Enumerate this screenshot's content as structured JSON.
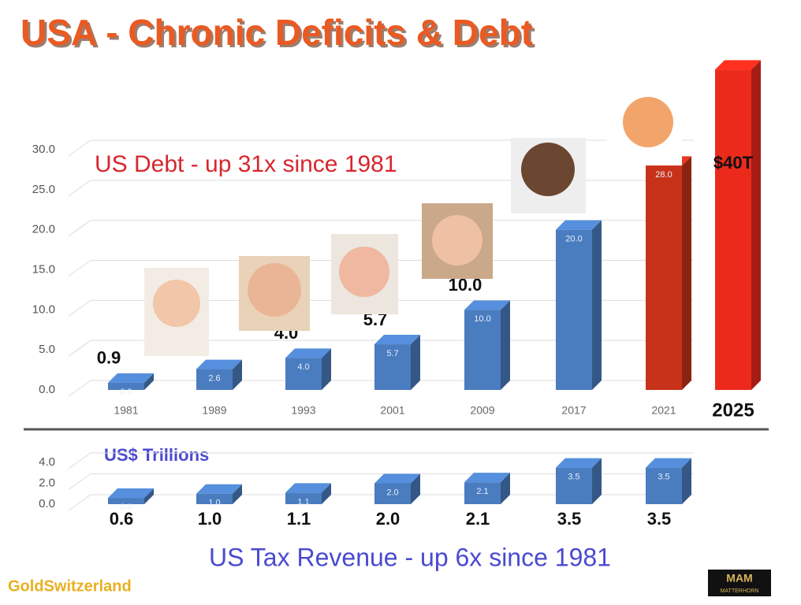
{
  "title": "USA - Chronic Deficits & Debt",
  "chart_data": [
    {
      "type": "bar3d",
      "annotation": "US Debt  -  up 31x since 1981",
      "categories": [
        "1981",
        "1989",
        "1993",
        "2001",
        "2009",
        "2017",
        "2021",
        "2025"
      ],
      "values": [
        0.9,
        2.6,
        4.0,
        5.7,
        10.0,
        20.0,
        28.0,
        40
      ],
      "value_labels": [
        "0.9",
        "2.6",
        "4.0",
        "5.7",
        "10.0",
        "20.0",
        "28.0?",
        "$40T"
      ],
      "bar_labels": [
        "0.9",
        "2.6",
        "4.0",
        "5.7",
        "10.0",
        "20.0",
        "28.0",
        null
      ],
      "colors": [
        "#4a7cc0",
        "#4a7cc0",
        "#4a7cc0",
        "#4a7cc0",
        "#4a7cc0",
        "#4a7cc0",
        "#c8321a",
        "#ec2a1c"
      ],
      "ylim": [
        0,
        30
      ],
      "yticks": [
        {
          "value": 0,
          "label": "0.0"
        },
        {
          "value": 5,
          "label": "5.0"
        },
        {
          "value": 10,
          "label": "10.0"
        },
        {
          "value": 15,
          "label": "15.0"
        },
        {
          "value": 20,
          "label": "20.0"
        },
        {
          "value": 25,
          "label": "25.0"
        },
        {
          "value": 30,
          "label": "30.0"
        }
      ],
      "grid": true
    },
    {
      "type": "bar3d",
      "subtitle": "US$ Trillions",
      "annotation": "US Tax Revenue  - up 6x since 1981",
      "categories": [
        null,
        null,
        null,
        null,
        null,
        null,
        null
      ],
      "values": [
        0.6,
        1.0,
        1.1,
        2.0,
        2.1,
        3.5,
        3.5
      ],
      "value_labels": [
        "0.6",
        "1.0",
        "1.1",
        "2.0",
        "2.1",
        "3.5",
        "3.5"
      ],
      "bar_labels": [
        "0.6",
        "1.0",
        "1.1",
        "2.0",
        "2.1",
        "3.5",
        "3.5"
      ],
      "colors": [
        "#4a7cc0",
        "#4a7cc0",
        "#4a7cc0",
        "#4a7cc0",
        "#4a7cc0",
        "#4a7cc0",
        "#4a7cc0"
      ],
      "ylim": [
        0,
        4
      ],
      "yticks": [
        {
          "value": 0,
          "label": "0.0"
        },
        {
          "value": 2,
          "label": "2.0"
        },
        {
          "value": 4,
          "label": "4.0"
        }
      ],
      "grid": true
    }
  ],
  "footer": {
    "source": "GoldSwitzerland",
    "logo_mark": "MAM",
    "logo_text": "MATTERHORN"
  }
}
